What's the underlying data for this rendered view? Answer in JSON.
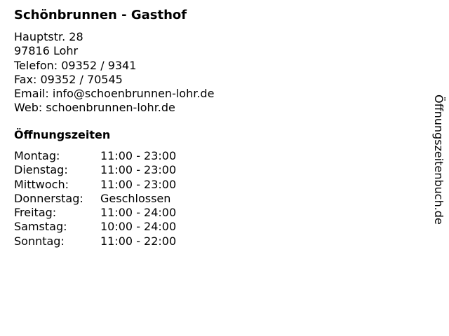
{
  "title": "Schönbrunnen - Gasthof",
  "address": {
    "street": "Hauptstr. 28",
    "city": "97816 Lohr",
    "phone": "Telefon: 09352 / 9341",
    "fax": "Fax: 09352 / 70545",
    "email": "Email: info@schoenbrunnen-lohr.de",
    "web": "Web: schoenbrunnen-lohr.de"
  },
  "hours_title": "Öffnungszeiten",
  "hours": [
    {
      "day": "Montag:",
      "time": "11:00 - 23:00"
    },
    {
      "day": "Dienstag:",
      "time": "11:00 - 23:00"
    },
    {
      "day": "Mittwoch:",
      "time": "11:00 - 23:00"
    },
    {
      "day": "Donnerstag:",
      "time": "Geschlossen"
    },
    {
      "day": "Freitag:",
      "time": "11:00 - 24:00"
    },
    {
      "day": "Samstag:",
      "time": "10:00 - 24:00"
    },
    {
      "day": "Sonntag:",
      "time": "11:00 - 22:00"
    }
  ],
  "side_brand": "Öffnungszeitenbuch.de"
}
